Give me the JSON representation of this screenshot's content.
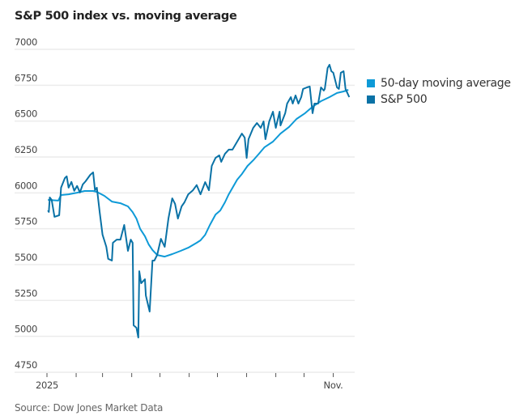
{
  "chart_data": {
    "type": "line",
    "title": "S&P 500 index vs. moving average",
    "source": "Source: Dow Jones Market Data",
    "xlabel": "",
    "ylabel": "",
    "ylim": [
      4750,
      7000
    ],
    "yticks": [
      4750,
      5000,
      5250,
      5500,
      5750,
      6000,
      6250,
      6500,
      6750,
      7000
    ],
    "xlim": [
      "2025-01-01",
      "2025-11-20"
    ],
    "xticks": [
      "2025-01-01",
      "2025-02-01",
      "2025-03-01",
      "2025-04-01",
      "2025-05-01",
      "2025-06-01",
      "2025-07-01",
      "2025-08-01",
      "2025-09-01",
      "2025-10-01",
      "2025-11-01"
    ],
    "xtick_labels": {
      "2025-01-01": "2025",
      "2025-11-01": "Nov."
    },
    "grid": "horizontal",
    "legend_position": "right",
    "series": [
      {
        "name": "50-day moving average",
        "color": "#0e9ad7",
        "points": [
          [
            "2025-01-02",
            5951
          ],
          [
            "2025-01-13",
            5946
          ],
          [
            "2025-01-16",
            5985
          ],
          [
            "2025-01-24",
            5990
          ],
          [
            "2025-02-02",
            6001
          ],
          [
            "2025-02-10",
            6013
          ],
          [
            "2025-02-19",
            6013
          ],
          [
            "2025-02-23",
            6007
          ],
          [
            "2025-03-03",
            5979
          ],
          [
            "2025-03-11",
            5939
          ],
          [
            "2025-03-20",
            5928
          ],
          [
            "2025-03-28",
            5906
          ],
          [
            "2025-04-02",
            5866
          ],
          [
            "2025-04-06",
            5821
          ],
          [
            "2025-04-10",
            5749
          ],
          [
            "2025-04-15",
            5698
          ],
          [
            "2025-04-19",
            5641
          ],
          [
            "2025-04-23",
            5602
          ],
          [
            "2025-04-28",
            5567
          ],
          [
            "2025-05-06",
            5556
          ],
          [
            "2025-05-14",
            5573
          ],
          [
            "2025-05-23",
            5596
          ],
          [
            "2025-05-31",
            5618
          ],
          [
            "2025-06-09",
            5652
          ],
          [
            "2025-06-13",
            5669
          ],
          [
            "2025-06-18",
            5708
          ],
          [
            "2025-06-23",
            5776
          ],
          [
            "2025-06-29",
            5849
          ],
          [
            "2025-07-04",
            5877
          ],
          [
            "2025-07-09",
            5934
          ],
          [
            "2025-07-13",
            5990
          ],
          [
            "2025-07-17",
            6035
          ],
          [
            "2025-07-22",
            6092
          ],
          [
            "2025-07-27",
            6131
          ],
          [
            "2025-08-02",
            6188
          ],
          [
            "2025-08-08",
            6227
          ],
          [
            "2025-08-14",
            6272
          ],
          [
            "2025-08-20",
            6318
          ],
          [
            "2025-08-29",
            6357
          ],
          [
            "2025-09-06",
            6413
          ],
          [
            "2025-09-15",
            6459
          ],
          [
            "2025-09-23",
            6515
          ],
          [
            "2025-10-02",
            6555
          ],
          [
            "2025-10-10",
            6600
          ],
          [
            "2025-10-19",
            6639
          ],
          [
            "2025-10-28",
            6667
          ],
          [
            "2025-11-05",
            6696
          ],
          [
            "2025-11-12",
            6707
          ],
          [
            "2025-11-17",
            6718
          ]
        ]
      },
      {
        "name": "S&P 500",
        "color": "#0a72a6",
        "points": [
          [
            "2025-01-02",
            5878
          ],
          [
            "2025-01-03",
            5867
          ],
          [
            "2025-01-04",
            5968
          ],
          [
            "2025-01-06",
            5951
          ],
          [
            "2025-01-09",
            5833
          ],
          [
            "2025-01-14",
            5844
          ],
          [
            "2025-01-16",
            6036
          ],
          [
            "2025-01-20",
            6103
          ],
          [
            "2025-01-22",
            6115
          ],
          [
            "2025-01-24",
            6036
          ],
          [
            "2025-01-27",
            6076
          ],
          [
            "2025-01-30",
            6014
          ],
          [
            "2025-02-02",
            6048
          ],
          [
            "2025-02-05",
            6003
          ],
          [
            "2025-02-08",
            6059
          ],
          [
            "2025-02-11",
            6081
          ],
          [
            "2025-02-16",
            6126
          ],
          [
            "2025-02-19",
            6143
          ],
          [
            "2025-02-21",
            6019
          ],
          [
            "2025-02-23",
            6036
          ],
          [
            "2025-02-26",
            5866
          ],
          [
            "2025-03-01",
            5709
          ],
          [
            "2025-03-05",
            5624
          ],
          [
            "2025-03-07",
            5540
          ],
          [
            "2025-03-11",
            5528
          ],
          [
            "2025-03-12",
            5652
          ],
          [
            "2025-03-16",
            5674
          ],
          [
            "2025-03-20",
            5674
          ],
          [
            "2025-03-24",
            5776
          ],
          [
            "2025-03-28",
            5596
          ],
          [
            "2025-03-31",
            5674
          ],
          [
            "2025-04-02",
            5652
          ],
          [
            "2025-04-03",
            5077
          ],
          [
            "2025-04-06",
            5060
          ],
          [
            "2025-04-08",
            4992
          ],
          [
            "2025-04-09",
            5454
          ],
          [
            "2025-04-11",
            5370
          ],
          [
            "2025-04-15",
            5398
          ],
          [
            "2025-04-16",
            5285
          ],
          [
            "2025-04-20",
            5173
          ],
          [
            "2025-04-23",
            5528
          ],
          [
            "2025-04-25",
            5528
          ],
          [
            "2025-04-28",
            5567
          ],
          [
            "2025-05-02",
            5680
          ],
          [
            "2025-05-06",
            5624
          ],
          [
            "2025-05-10",
            5821
          ],
          [
            "2025-05-14",
            5962
          ],
          [
            "2025-05-17",
            5923
          ],
          [
            "2025-05-20",
            5821
          ],
          [
            "2025-05-24",
            5906
          ],
          [
            "2025-05-27",
            5934
          ],
          [
            "2025-05-31",
            5990
          ],
          [
            "2025-06-05",
            6018
          ],
          [
            "2025-06-09",
            6054
          ],
          [
            "2025-06-13",
            5990
          ],
          [
            "2025-06-18",
            6075
          ],
          [
            "2025-06-22",
            6018
          ],
          [
            "2025-06-25",
            6188
          ],
          [
            "2025-06-29",
            6244
          ],
          [
            "2025-07-03",
            6261
          ],
          [
            "2025-07-05",
            6216
          ],
          [
            "2025-07-09",
            6272
          ],
          [
            "2025-07-13",
            6301
          ],
          [
            "2025-07-17",
            6301
          ],
          [
            "2025-07-22",
            6357
          ],
          [
            "2025-07-27",
            6413
          ],
          [
            "2025-07-30",
            6385
          ],
          [
            "2025-08-01",
            6243
          ],
          [
            "2025-08-03",
            6374
          ],
          [
            "2025-08-08",
            6453
          ],
          [
            "2025-08-12",
            6487
          ],
          [
            "2025-08-16",
            6453
          ],
          [
            "2025-08-19",
            6498
          ],
          [
            "2025-08-21",
            6374
          ],
          [
            "2025-08-25",
            6498
          ],
          [
            "2025-08-29",
            6566
          ],
          [
            "2025-09-01",
            6453
          ],
          [
            "2025-09-05",
            6566
          ],
          [
            "2025-09-06",
            6470
          ],
          [
            "2025-09-11",
            6555
          ],
          [
            "2025-09-13",
            6622
          ],
          [
            "2025-09-17",
            6667
          ],
          [
            "2025-09-19",
            6622
          ],
          [
            "2025-09-22",
            6679
          ],
          [
            "2025-09-25",
            6622
          ],
          [
            "2025-09-28",
            6667
          ],
          [
            "2025-09-30",
            6724
          ],
          [
            "2025-10-04",
            6735
          ],
          [
            "2025-10-07",
            6741
          ],
          [
            "2025-10-10",
            6555
          ],
          [
            "2025-10-12",
            6622
          ],
          [
            "2025-10-16",
            6622
          ],
          [
            "2025-10-19",
            6735
          ],
          [
            "2025-10-22",
            6713
          ],
          [
            "2025-10-23",
            6724
          ],
          [
            "2025-10-26",
            6870
          ],
          [
            "2025-10-28",
            6893
          ],
          [
            "2025-10-30",
            6848
          ],
          [
            "2025-11-01",
            6837
          ],
          [
            "2025-11-05",
            6735
          ],
          [
            "2025-11-07",
            6724
          ],
          [
            "2025-11-09",
            6837
          ],
          [
            "2025-11-12",
            6848
          ],
          [
            "2025-11-14",
            6724
          ],
          [
            "2025-11-16",
            6696
          ],
          [
            "2025-11-18",
            6667
          ]
        ]
      }
    ]
  }
}
